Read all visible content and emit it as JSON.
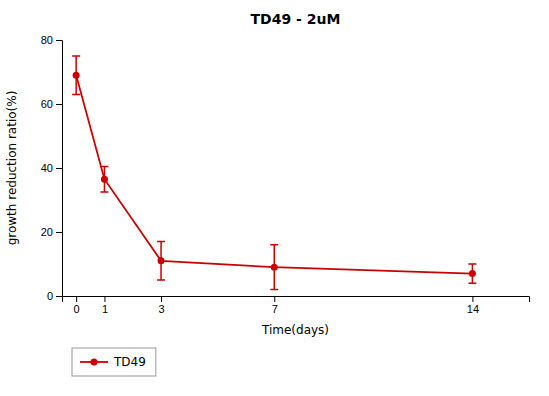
{
  "chart_data": {
    "type": "line",
    "title": "TD49 - 2uM",
    "xlabel": "Time(days)",
    "ylabel": "growth reduction ratio(%)",
    "x": [
      0,
      1,
      3,
      7,
      14
    ],
    "series": [
      {
        "name": "TD49",
        "color": "#cc0000",
        "values": [
          69,
          36.5,
          11,
          9,
          7
        ],
        "yerr": [
          6,
          4,
          6,
          7,
          3
        ],
        "marker": "circle"
      }
    ],
    "xlim": [
      -0.5,
      16
    ],
    "xticks": [
      0,
      1,
      3,
      7,
      14
    ],
    "ylim": [
      0,
      80
    ],
    "yticks": [
      0,
      20,
      40,
      60,
      80
    ],
    "grid": false,
    "legend": "lower left"
  }
}
